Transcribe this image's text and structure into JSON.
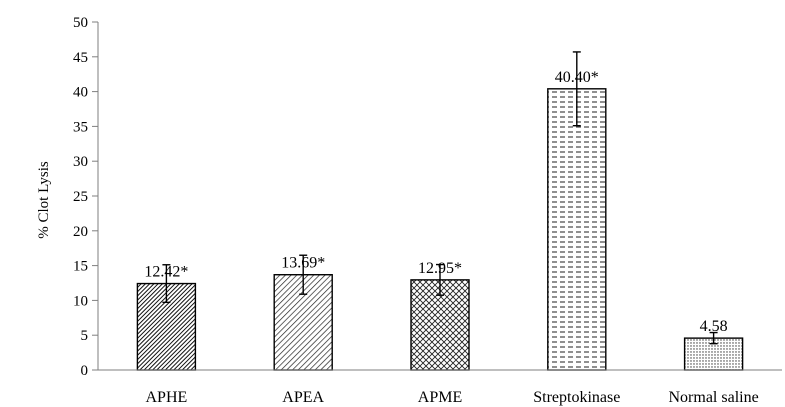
{
  "chart_data": {
    "type": "bar",
    "title": "",
    "xlabel": "",
    "ylabel": "% Clot Lysis",
    "ylim": [
      0,
      50
    ],
    "yticks": [
      0,
      5,
      10,
      15,
      20,
      25,
      30,
      35,
      40,
      45,
      50
    ],
    "grid": false,
    "categories": [
      "APHE",
      "APEA",
      "APME",
      "Streptokinase",
      "Normal saline"
    ],
    "values": [
      12.42,
      13.69,
      12.95,
      40.4,
      4.58
    ],
    "errors": [
      2.7,
      2.8,
      2.2,
      5.3,
      0.8
    ],
    "data_labels": [
      "12.42*",
      "13.69*",
      "12.95*",
      "40.40*",
      "4.58"
    ],
    "bar_patterns": [
      "dense-diagonal",
      "diagonal",
      "crosshatch",
      "horizontal-dashes",
      "dots"
    ]
  }
}
